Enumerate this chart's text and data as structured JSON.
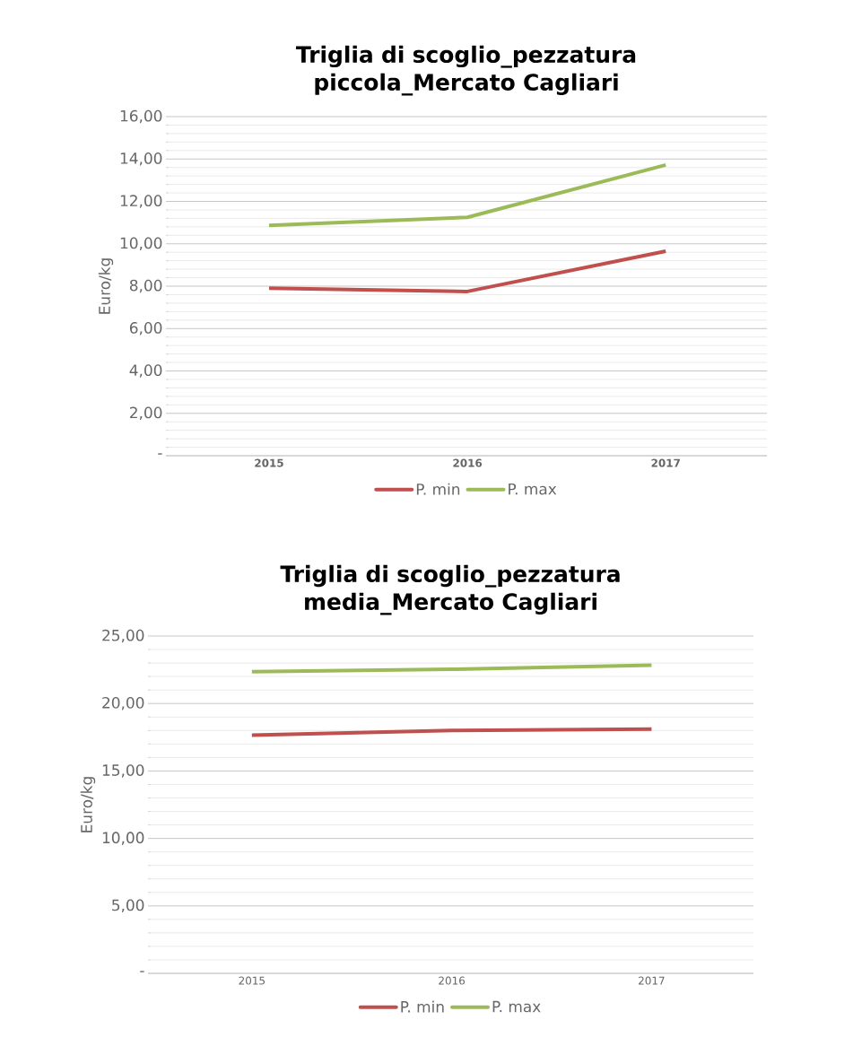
{
  "chart_data": [
    {
      "type": "line",
      "title": "Triglia di scoglio_pezzatura piccola_Mercato Cagliari",
      "ylabel": "Euro/kg",
      "categories": [
        "2015",
        "2016",
        "2017"
      ],
      "series": [
        {
          "name": "P. min",
          "color": "#c0504d",
          "values": [
            7.9,
            7.75,
            9.65
          ]
        },
        {
          "name": "P. max",
          "color": "#9bbb59",
          "values": [
            10.87,
            11.25,
            13.72
          ]
        }
      ],
      "ylim": [
        0,
        16
      ],
      "yticks": [
        {
          "value": 0,
          "label": "-"
        },
        {
          "value": 2,
          "label": "2,00"
        },
        {
          "value": 4,
          "label": "4,00"
        },
        {
          "value": 6,
          "label": "6,00"
        },
        {
          "value": 8,
          "label": "8,00"
        },
        {
          "value": 10,
          "label": "10,00"
        },
        {
          "value": 12,
          "label": "12,00"
        },
        {
          "value": 14,
          "label": "14,00"
        },
        {
          "value": 16,
          "label": "16,00"
        }
      ],
      "grid": "y",
      "legend": "bottom",
      "marker": "none",
      "line_style": "solid"
    },
    {
      "type": "line",
      "title": "Triglia di scoglio_pezzatura media_Mercato Cagliari",
      "ylabel": "Euro/kg",
      "categories": [
        "2015",
        "2016",
        "2017"
      ],
      "series": [
        {
          "name": "P. min",
          "color": "#c0504d",
          "values": [
            17.66,
            18.0,
            18.1
          ]
        },
        {
          "name": "P. max",
          "color": "#9bbb59",
          "values": [
            22.35,
            22.54,
            22.84
          ]
        }
      ],
      "ylim": [
        0,
        25
      ],
      "yticks": [
        {
          "value": 0,
          "label": "-"
        },
        {
          "value": 5,
          "label": "5,00"
        },
        {
          "value": 10,
          "label": "10,00"
        },
        {
          "value": 15,
          "label": "15,00"
        },
        {
          "value": 20,
          "label": "20,00"
        },
        {
          "value": 25,
          "label": "25,00"
        }
      ],
      "grid": "y",
      "legend": "bottom",
      "marker": "none",
      "line_style": "solid"
    }
  ]
}
